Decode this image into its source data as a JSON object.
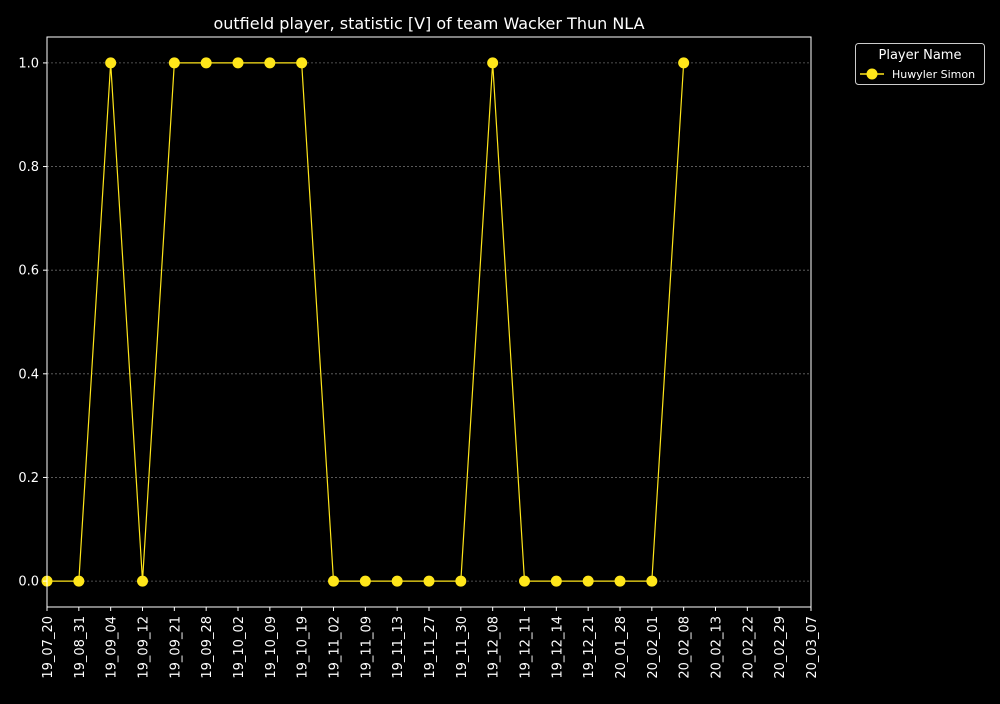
{
  "chart_data": {
    "type": "line",
    "title": "outfield player, statistic [V] of team Wacker Thun NLA",
    "xlabel": "",
    "ylabel": "",
    "categories": [
      "19_07_20",
      "19_08_31",
      "19_09_04",
      "19_09_12",
      "19_09_21",
      "19_09_28",
      "19_10_02",
      "19_10_09",
      "19_10_19",
      "19_11_02",
      "19_11_09",
      "19_11_13",
      "19_11_27",
      "19_11_30",
      "19_12_08",
      "19_12_11",
      "19_12_14",
      "19_12_21",
      "20_01_28",
      "20_02_01",
      "20_02_08",
      "20_02_13",
      "20_02_22",
      "20_02_29",
      "20_03_07"
    ],
    "series": [
      {
        "name": "Huwyler Simon",
        "color": "#FFE61A",
        "values": [
          0,
          0,
          1,
          0,
          1,
          1,
          1,
          1,
          1,
          0,
          0,
          0,
          0,
          0,
          1,
          0,
          0,
          0,
          0,
          0,
          1,
          null,
          null,
          null,
          null
        ]
      }
    ],
    "ylim": [
      -0.05,
      1.05
    ],
    "yticks": [
      0.0,
      0.2,
      0.4,
      0.6,
      0.8,
      1.0
    ],
    "ytick_labels": [
      "0.0",
      "0.2",
      "0.4",
      "0.6",
      "0.8",
      "1.0"
    ],
    "grid": true,
    "legend": {
      "title": "Player Name",
      "placement": "outside-top-right"
    },
    "colors": {
      "background": "#000000",
      "axes": "#FFFFFF",
      "grid": "#666666"
    }
  }
}
